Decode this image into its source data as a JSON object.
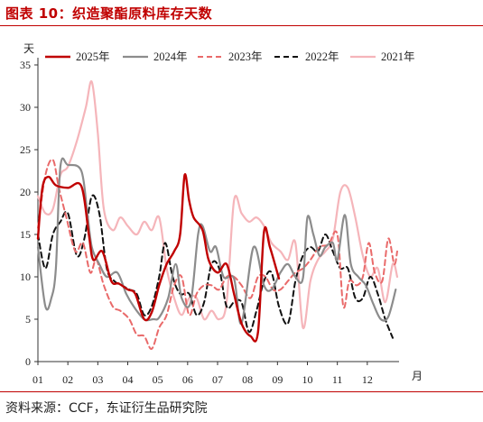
{
  "header": {
    "title": "图表 10：织造聚酯原料库存天数"
  },
  "footer": {
    "source": "资料来源：CCF，东证衍生品研究院"
  },
  "chart_data": {
    "type": "line",
    "ylabel": "天",
    "xlabel": "月",
    "ylim": [
      0,
      35
    ],
    "yticks": [
      0,
      5,
      10,
      15,
      20,
      25,
      30,
      35
    ],
    "xlim": [
      1,
      13
    ],
    "xticks": [
      "01",
      "02",
      "03",
      "04",
      "05",
      "06",
      "07",
      "08",
      "09",
      "10",
      "11",
      "12"
    ],
    "grid": false,
    "legend_position": "top",
    "series": [
      {
        "name": "2025年",
        "color": "#c00000",
        "dash": "",
        "width": 2.4,
        "points": [
          [
            1.0,
            14.5
          ],
          [
            1.15,
            20.5
          ],
          [
            1.35,
            21.8
          ],
          [
            1.6,
            20.8
          ],
          [
            2.0,
            20.5
          ],
          [
            2.45,
            20.7
          ],
          [
            2.7,
            15.0
          ],
          [
            2.85,
            12.0
          ],
          [
            3.15,
            13.0
          ],
          [
            3.45,
            9.5
          ],
          [
            3.7,
            9.2
          ],
          [
            4.0,
            8.5
          ],
          [
            4.25,
            8.0
          ],
          [
            4.55,
            5.0
          ],
          [
            4.8,
            5.8
          ],
          [
            5.05,
            9.0
          ],
          [
            5.3,
            11.5
          ],
          [
            5.55,
            13.0
          ],
          [
            5.75,
            15.0
          ],
          [
            5.9,
            22.0
          ],
          [
            6.05,
            19.0
          ],
          [
            6.2,
            17.0
          ],
          [
            6.5,
            15.5
          ],
          [
            6.7,
            12.0
          ],
          [
            7.0,
            10.5
          ],
          [
            7.3,
            11.5
          ],
          [
            7.55,
            8.0
          ],
          [
            7.8,
            4.5
          ],
          [
            8.1,
            3.0
          ],
          [
            8.35,
            3.5
          ],
          [
            8.55,
            15.3
          ],
          [
            8.75,
            13.5
          ],
          [
            9.05,
            9.8
          ]
        ]
      },
      {
        "name": "2024年",
        "color": "#8c8c8c",
        "dash": "",
        "width": 2.2,
        "points": [
          [
            1.0,
            13.5
          ],
          [
            1.25,
            6.5
          ],
          [
            1.45,
            7.5
          ],
          [
            1.6,
            11.0
          ],
          [
            1.75,
            23.0
          ],
          [
            2.0,
            23.2
          ],
          [
            2.45,
            22.5
          ],
          [
            2.65,
            17.5
          ],
          [
            2.8,
            13.5
          ],
          [
            3.05,
            11.5
          ],
          [
            3.3,
            10.0
          ],
          [
            3.65,
            10.5
          ],
          [
            3.95,
            8.0
          ],
          [
            4.2,
            6.5
          ],
          [
            4.55,
            5.0
          ],
          [
            4.85,
            5.0
          ],
          [
            5.05,
            5.2
          ],
          [
            5.35,
            7.5
          ],
          [
            5.6,
            11.5
          ],
          [
            5.8,
            7.5
          ],
          [
            6.1,
            7.0
          ],
          [
            6.35,
            15.0
          ],
          [
            6.5,
            16.0
          ],
          [
            6.75,
            13.0
          ],
          [
            6.95,
            13.5
          ],
          [
            7.2,
            10.0
          ],
          [
            7.55,
            9.8
          ],
          [
            7.8,
            4.5
          ],
          [
            8.2,
            13.5
          ],
          [
            8.55,
            9.0
          ],
          [
            8.8,
            8.5
          ],
          [
            9.1,
            10.5
          ],
          [
            9.35,
            11.5
          ],
          [
            9.6,
            10.0
          ],
          [
            9.85,
            9.8
          ],
          [
            10.0,
            17.0
          ],
          [
            10.2,
            15.0
          ],
          [
            10.4,
            12.5
          ],
          [
            10.6,
            13.5
          ],
          [
            10.85,
            14.0
          ],
          [
            11.0,
            12.0
          ],
          [
            11.25,
            17.3
          ],
          [
            11.45,
            11.5
          ],
          [
            11.7,
            10.0
          ],
          [
            11.95,
            9.0
          ],
          [
            12.2,
            6.8
          ],
          [
            12.45,
            5.0
          ],
          [
            12.7,
            5.3
          ],
          [
            12.95,
            8.5
          ]
        ]
      },
      {
        "name": "2023年",
        "color": "#e96a6a",
        "dash": "6,4",
        "width": 2.0,
        "points": [
          [
            1.0,
            15.8
          ],
          [
            1.25,
            22.0
          ],
          [
            1.5,
            23.8
          ],
          [
            1.7,
            20.5
          ],
          [
            1.95,
            17.0
          ],
          [
            2.25,
            13.0
          ],
          [
            2.5,
            14.0
          ],
          [
            2.75,
            10.5
          ],
          [
            2.95,
            12.0
          ],
          [
            3.2,
            9.0
          ],
          [
            3.5,
            6.5
          ],
          [
            3.75,
            6.0
          ],
          [
            4.05,
            5.0
          ],
          [
            4.3,
            3.2
          ],
          [
            4.55,
            3.0
          ],
          [
            4.8,
            1.5
          ],
          [
            5.05,
            4.0
          ],
          [
            5.3,
            5.5
          ],
          [
            5.55,
            9.0
          ],
          [
            5.8,
            10.0
          ],
          [
            6.05,
            5.5
          ],
          [
            6.3,
            8.0
          ],
          [
            6.55,
            9.0
          ],
          [
            6.8,
            9.0
          ],
          [
            7.05,
            8.5
          ],
          [
            7.3,
            10.0
          ],
          [
            7.55,
            10.0
          ],
          [
            7.8,
            9.0
          ],
          [
            8.1,
            7.5
          ],
          [
            8.35,
            10.0
          ],
          [
            8.6,
            10.0
          ],
          [
            8.85,
            8.5
          ],
          [
            9.1,
            8.5
          ],
          [
            9.35,
            9.5
          ],
          [
            9.6,
            10.5
          ],
          [
            9.85,
            11.0
          ],
          [
            10.1,
            12.0
          ],
          [
            10.4,
            13.5
          ],
          [
            10.7,
            13.8
          ],
          [
            11.0,
            15.0
          ],
          [
            11.2,
            6.5
          ],
          [
            11.4,
            9.5
          ],
          [
            11.65,
            9.0
          ],
          [
            11.85,
            10.0
          ],
          [
            12.05,
            14.0
          ],
          [
            12.25,
            10.5
          ],
          [
            12.5,
            9.5
          ],
          [
            12.7,
            14.5
          ],
          [
            12.9,
            11.5
          ],
          [
            13.0,
            13.0
          ]
        ]
      },
      {
        "name": "2022年",
        "color": "#111111",
        "dash": "6,4",
        "width": 2.0,
        "points": [
          [
            1.0,
            15.0
          ],
          [
            1.25,
            11.0
          ],
          [
            1.5,
            15.0
          ],
          [
            1.75,
            16.5
          ],
          [
            2.0,
            17.5
          ],
          [
            2.3,
            12.5
          ],
          [
            2.55,
            14.5
          ],
          [
            2.8,
            19.5
          ],
          [
            3.05,
            17.5
          ],
          [
            3.3,
            11.0
          ],
          [
            3.55,
            9.5
          ],
          [
            3.8,
            9.0
          ],
          [
            4.05,
            8.5
          ],
          [
            4.3,
            8.0
          ],
          [
            4.55,
            5.5
          ],
          [
            4.8,
            6.5
          ],
          [
            5.05,
            10.0
          ],
          [
            5.25,
            14.0
          ],
          [
            5.5,
            10.0
          ],
          [
            5.75,
            8.0
          ],
          [
            6.05,
            8.0
          ],
          [
            6.3,
            5.5
          ],
          [
            6.55,
            7.0
          ],
          [
            6.8,
            11.5
          ],
          [
            7.05,
            11.0
          ],
          [
            7.3,
            6.5
          ],
          [
            7.55,
            7.0
          ],
          [
            7.8,
            7.0
          ],
          [
            8.05,
            3.5
          ],
          [
            8.3,
            6.0
          ],
          [
            8.55,
            9.5
          ],
          [
            8.8,
            10.5
          ],
          [
            9.05,
            6.5
          ],
          [
            9.35,
            4.5
          ],
          [
            9.6,
            9.5
          ],
          [
            9.85,
            12.5
          ],
          [
            10.1,
            13.5
          ],
          [
            10.35,
            13.0
          ],
          [
            10.6,
            15.0
          ],
          [
            10.85,
            13.0
          ],
          [
            11.1,
            11.0
          ],
          [
            11.35,
            11.0
          ],
          [
            11.6,
            7.5
          ],
          [
            11.85,
            7.5
          ],
          [
            12.1,
            10.0
          ],
          [
            12.35,
            8.0
          ],
          [
            12.6,
            5.0
          ],
          [
            12.85,
            2.8
          ]
        ]
      },
      {
        "name": "2021年",
        "color": "#f5b5ba",
        "dash": "",
        "width": 2.2,
        "points": [
          [
            1.0,
            19.5
          ],
          [
            1.25,
            17.5
          ],
          [
            1.5,
            18.0
          ],
          [
            1.75,
            22.0
          ],
          [
            2.0,
            23.0
          ],
          [
            2.3,
            26.0
          ],
          [
            2.6,
            30.0
          ],
          [
            2.8,
            33.0
          ],
          [
            3.0,
            27.0
          ],
          [
            3.2,
            18.0
          ],
          [
            3.5,
            15.5
          ],
          [
            3.75,
            17.0
          ],
          [
            4.0,
            16.0
          ],
          [
            4.3,
            15.0
          ],
          [
            4.55,
            16.5
          ],
          [
            4.8,
            15.5
          ],
          [
            5.05,
            17.0
          ],
          [
            5.3,
            11.0
          ],
          [
            5.55,
            7.5
          ],
          [
            5.8,
            5.5
          ],
          [
            6.05,
            7.5
          ],
          [
            6.3,
            7.5
          ],
          [
            6.55,
            5.0
          ],
          [
            6.8,
            6.0
          ],
          [
            7.05,
            5.0
          ],
          [
            7.3,
            7.0
          ],
          [
            7.55,
            19.0
          ],
          [
            7.8,
            17.5
          ],
          [
            8.05,
            16.5
          ],
          [
            8.3,
            17.0
          ],
          [
            8.55,
            16.0
          ],
          [
            8.8,
            14.0
          ],
          [
            9.1,
            13.0
          ],
          [
            9.35,
            12.0
          ],
          [
            9.6,
            14.0
          ],
          [
            9.85,
            4.0
          ],
          [
            10.1,
            9.5
          ],
          [
            10.35,
            12.0
          ],
          [
            10.6,
            13.0
          ],
          [
            10.85,
            14.5
          ],
          [
            11.1,
            20.0
          ],
          [
            11.35,
            20.5
          ],
          [
            11.6,
            17.0
          ],
          [
            11.85,
            12.5
          ],
          [
            12.1,
            10.0
          ],
          [
            12.35,
            11.0
          ],
          [
            12.6,
            7.0
          ],
          [
            12.85,
            11.5
          ],
          [
            13.0,
            10.0
          ]
        ]
      }
    ]
  }
}
